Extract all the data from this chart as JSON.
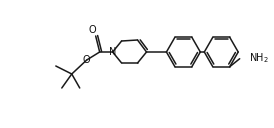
{
  "bg_color": "#ffffff",
  "line_color": "#1a1a1a",
  "lw": 1.1,
  "text_color": "#111111",
  "figsize": [
    2.74,
    1.28
  ],
  "dpi": 100,
  "fs": 7.0,
  "NH2": "NH$_2$",
  "N_lbl": "N",
  "O_lbl": "O",
  "O2_lbl": "O"
}
